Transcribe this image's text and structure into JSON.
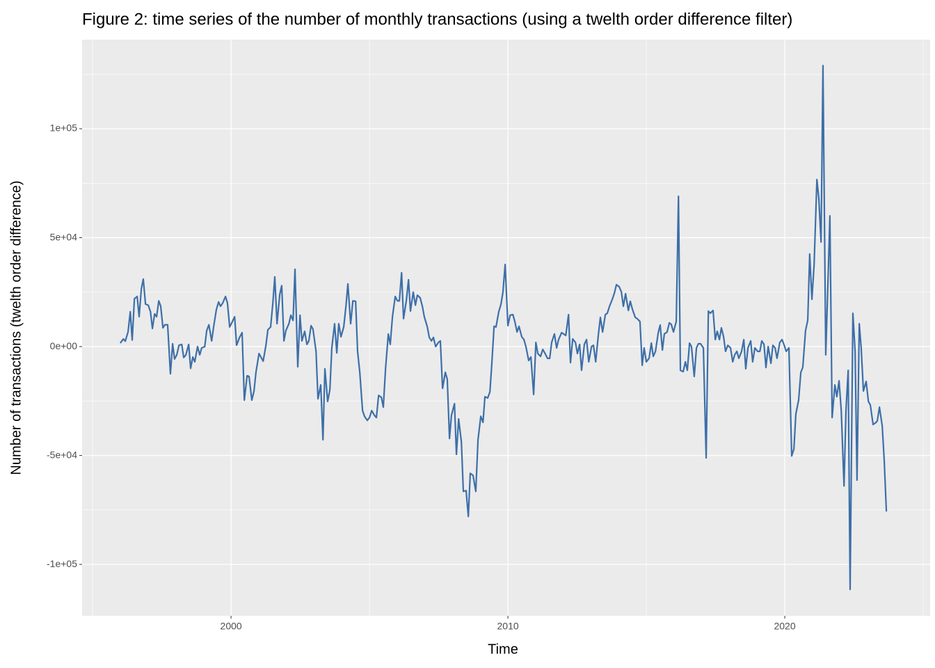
{
  "chart_data": {
    "type": "line",
    "title": "Figure 2: time series of the number of monthly transactions (using a twelth order difference filter)",
    "x_label": "Time",
    "y_label": "Number of transactions (twelth order difference)",
    "color": "#3d6fa8",
    "grid": true,
    "xlim": [
      1994.62,
      2025.25
    ],
    "ylim": [
      -123600,
      140900
    ],
    "xticks": [
      2000,
      2010,
      2020
    ],
    "yticks": [
      {
        "value": -100000,
        "label": "-1e+05"
      },
      {
        "value": -50000,
        "label": "-5e+04"
      },
      {
        "value": 0,
        "label": "0e+00"
      },
      {
        "value": 50000,
        "label": "5e+04"
      },
      {
        "value": 100000,
        "label": "1e+05"
      }
    ],
    "minor_xticks": [
      1995,
      2005,
      2015,
      2025
    ],
    "minor_yticks": [
      -75000,
      -25000,
      25000,
      75000,
      125000
    ],
    "x": [
      1996.0,
      1996.11,
      1996.18,
      1996.28,
      1996.36,
      1996.43,
      1996.51,
      1996.61,
      1996.68,
      1996.76,
      1996.83,
      1996.91,
      1997.01,
      1997.09,
      1997.16,
      1997.24,
      1997.31,
      1997.39,
      1997.46,
      1997.54,
      1997.61,
      1997.71,
      1997.81,
      1997.89,
      1997.96,
      1998.04,
      1998.12,
      1998.22,
      1998.29,
      1998.37,
      1998.47,
      1998.54,
      1998.62,
      1998.69,
      1998.79,
      1998.87,
      1998.94,
      1999.05,
      1999.12,
      1999.2,
      1999.3,
      1999.37,
      1999.47,
      1999.55,
      1999.62,
      1999.7,
      1999.8,
      1999.87,
      1999.95,
      2000.03,
      2000.13,
      2000.2,
      2000.3,
      2000.4,
      2000.48,
      2000.58,
      2000.65,
      2000.75,
      2000.83,
      2000.9,
      2001.01,
      2001.08,
      2001.16,
      2001.26,
      2001.33,
      2001.43,
      2001.51,
      2001.58,
      2001.66,
      2001.76,
      2001.83,
      2001.91,
      2001.98,
      2002.09,
      2002.16,
      2002.24,
      2002.31,
      2002.41,
      2002.49,
      2002.56,
      2002.66,
      2002.74,
      2002.81,
      2002.89,
      2002.96,
      2003.07,
      2003.14,
      2003.24,
      2003.32,
      2003.39,
      2003.49,
      2003.57,
      2003.64,
      2003.74,
      2003.82,
      2003.89,
      2003.97,
      2004.07,
      2004.15,
      2004.22,
      2004.32,
      2004.4,
      2004.5,
      2004.57,
      2004.65,
      2004.75,
      2004.82,
      2004.92,
      2005.0,
      2005.08,
      2005.18,
      2005.25,
      2005.33,
      2005.43,
      2005.5,
      2005.58,
      2005.68,
      2005.75,
      2005.83,
      2005.93,
      2006.01,
      2006.08,
      2006.16,
      2006.23,
      2006.33,
      2006.41,
      2006.48,
      2006.58,
      2006.66,
      2006.73,
      2006.83,
      2006.91,
      2006.98,
      2007.09,
      2007.16,
      2007.24,
      2007.31,
      2007.39,
      2007.49,
      2007.56,
      2007.64,
      2007.74,
      2007.81,
      2007.89,
      2007.96,
      2008.07,
      2008.14,
      2008.22,
      2008.32,
      2008.39,
      2008.49,
      2008.57,
      2008.64,
      2008.74,
      2008.84,
      2008.92,
      2009.02,
      2009.1,
      2009.17,
      2009.27,
      2009.35,
      2009.42,
      2009.5,
      2009.57,
      2009.67,
      2009.75,
      2009.82,
      2009.9,
      2010.0,
      2010.08,
      2010.18,
      2010.25,
      2010.33,
      2010.4,
      2010.5,
      2010.58,
      2010.65,
      2010.75,
      2010.83,
      2010.93,
      2011.01,
      2011.08,
      2011.18,
      2011.26,
      2011.33,
      2011.43,
      2011.51,
      2011.58,
      2011.68,
      2011.76,
      2011.83,
      2011.94,
      2012.01,
      2012.09,
      2012.19,
      2012.26,
      2012.34,
      2012.44,
      2012.51,
      2012.59,
      2012.66,
      2012.76,
      2012.84,
      2012.92,
      2013.02,
      2013.09,
      2013.17,
      2013.27,
      2013.34,
      2013.42,
      2013.52,
      2013.59,
      2013.67,
      2013.77,
      2013.84,
      2013.92,
      2014.02,
      2014.1,
      2014.17,
      2014.25,
      2014.35,
      2014.42,
      2014.5,
      2014.6,
      2014.67,
      2014.77,
      2014.85,
      2014.92,
      2015.0,
      2015.1,
      2015.18,
      2015.25,
      2015.33,
      2015.43,
      2015.5,
      2015.58,
      2015.65,
      2015.75,
      2015.83,
      2015.9,
      2015.98,
      2016.08,
      2016.16,
      2016.23,
      2016.33,
      2016.41,
      2016.48,
      2016.56,
      2016.63,
      2016.73,
      2016.81,
      2016.88,
      2016.96,
      2017.06,
      2017.16,
      2017.24,
      2017.31,
      2017.41,
      2017.49,
      2017.56,
      2017.64,
      2017.71,
      2017.79,
      2017.86,
      2017.94,
      2018.04,
      2018.12,
      2018.19,
      2018.27,
      2018.34,
      2018.44,
      2018.52,
      2018.59,
      2018.67,
      2018.77,
      2018.84,
      2018.92,
      2019.02,
      2019.1,
      2019.17,
      2019.25,
      2019.32,
      2019.4,
      2019.5,
      2019.57,
      2019.65,
      2019.72,
      2019.82,
      2019.9,
      2019.97,
      2020.05,
      2020.15,
      2020.25,
      2020.33,
      2020.4,
      2020.5,
      2020.58,
      2020.65,
      2020.75,
      2020.83,
      2020.9,
      2020.98,
      2021.06,
      2021.16,
      2021.23,
      2021.31,
      2021.38,
      2021.48,
      2021.56,
      2021.63,
      2021.71,
      2021.81,
      2021.88,
      2021.96,
      2022.04,
      2022.14,
      2022.21,
      2022.29,
      2022.36,
      2022.46,
      2022.54,
      2022.61,
      2022.69,
      2022.76,
      2022.84,
      2022.94,
      2023.02,
      2023.09,
      2023.19,
      2023.27,
      2023.34,
      2023.42,
      2023.52,
      2023.59,
      2023.67
    ],
    "values": [
      1600,
      3500,
      2500,
      6700,
      16000,
      3000,
      22000,
      23000,
      13700,
      26500,
      31000,
      19500,
      19000,
      16000,
      8300,
      15000,
      13700,
      21000,
      18500,
      8600,
      10000,
      10000,
      -12500,
      1300,
      -5700,
      -3800,
      600,
      1000,
      -5000,
      -3800,
      1000,
      -10000,
      -4800,
      -7000,
      0,
      -3800,
      -600,
      0,
      7300,
      10000,
      2600,
      9000,
      17000,
      20500,
      18500,
      20000,
      23000,
      20000,
      9000,
      11000,
      13700,
      600,
      4000,
      6400,
      -24600,
      -13400,
      -13700,
      -24600,
      -20400,
      -11800,
      -3200,
      -4800,
      -6700,
      600,
      7700,
      9000,
      20000,
      32000,
      10500,
      24000,
      28000,
      2600,
      7300,
      10500,
      14400,
      12000,
      35500,
      -9300,
      14400,
      2600,
      7000,
      1000,
      2600,
      9600,
      8000,
      -2200,
      -24000,
      -17600,
      -42800,
      -10200,
      -25200,
      -19800,
      -600,
      10500,
      -2900,
      10500,
      4500,
      9000,
      18500,
      28800,
      10500,
      21000,
      20800,
      -2200,
      -11800,
      -29400,
      -32000,
      -33900,
      -32600,
      -29400,
      -31600,
      -32600,
      -22400,
      -23300,
      -27800,
      -10200,
      5800,
      1000,
      13700,
      23000,
      21000,
      21000,
      33900,
      12800,
      21000,
      30700,
      16300,
      25000,
      19000,
      23600,
      22400,
      18500,
      13700,
      9000,
      4200,
      2600,
      4200,
      0,
      1900,
      2600,
      -19200,
      -11800,
      -15000,
      -42200,
      -31600,
      -26200,
      -49500,
      -33200,
      -43800,
      -66500,
      -66100,
      -78000,
      -58200,
      -59100,
      -66500,
      -42800,
      -32000,
      -34800,
      -23000,
      -23600,
      -20800,
      -7700,
      9300,
      9000,
      16000,
      19500,
      25000,
      37700,
      9600,
      14400,
      14700,
      11500,
      6700,
      9300,
      4500,
      3200,
      0,
      -6400,
      -4800,
      -22000,
      1900,
      -3200,
      -4500,
      -1300,
      -2900,
      -5400,
      -5400,
      1900,
      5800,
      -600,
      3200,
      6400,
      5800,
      5100,
      14700,
      -7400,
      3500,
      1900,
      -3200,
      1000,
      -10900,
      1000,
      3200,
      -7000,
      0,
      600,
      -7000,
      5800,
      13400,
      6700,
      14700,
      15300,
      18500,
      21700,
      24300,
      28400,
      27500,
      25000,
      18500,
      24300,
      16600,
      20800,
      17000,
      13400,
      12800,
      11500,
      -8600,
      -600,
      -7000,
      -5400,
      1600,
      -4500,
      -2200,
      6400,
      9900,
      -1600,
      5800,
      6700,
      10900,
      10200,
      6700,
      11500,
      69000,
      -10900,
      -11500,
      -7000,
      -10900,
      1600,
      0,
      -13700,
      -600,
      1300,
      1300,
      -600,
      -51100,
      16300,
      15300,
      16600,
      3200,
      7000,
      3200,
      8600,
      4500,
      -2200,
      600,
      -600,
      -7000,
      -3800,
      -2200,
      -5400,
      -2200,
      3200,
      -10200,
      -600,
      2600,
      -7000,
      -600,
      -2200,
      -2200,
      2600,
      1000,
      -9600,
      0,
      -7700,
      600,
      -600,
      -5400,
      1900,
      3200,
      1000,
      -2200,
      -600,
      -50200,
      -47000,
      -31000,
      -24600,
      -11800,
      -9600,
      7300,
      12100,
      42500,
      21700,
      37700,
      76700,
      68000,
      48000,
      129000,
      -3800,
      29700,
      60000,
      -32600,
      -17600,
      -23000,
      -15700,
      -29400,
      -64000,
      -29400,
      -10900,
      -111500,
      15300,
      -2200,
      -61300,
      10500,
      -600,
      -20400,
      -16000,
      -25200,
      -26800,
      -35800,
      -35100,
      -34200,
      -27800,
      -36400,
      -51800,
      -75700
    ]
  }
}
